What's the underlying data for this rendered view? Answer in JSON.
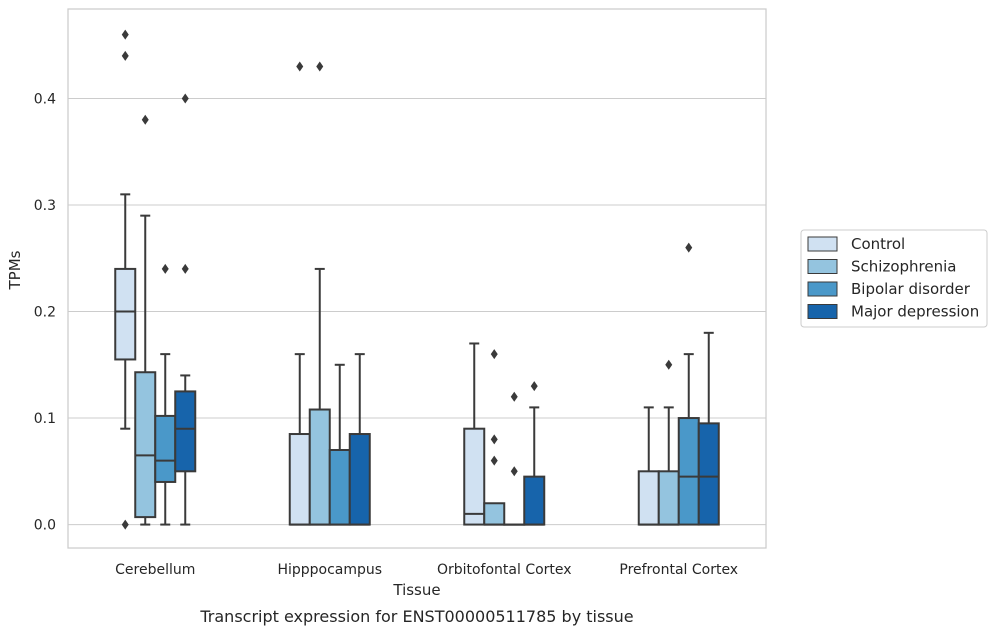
{
  "chart_data": {
    "type": "box",
    "caption": "Transcript expression for ENST00000511785 by tissue",
    "xlabel": "Tissue",
    "ylabel": "TPMs",
    "ylim": [
      -0.022,
      0.484
    ],
    "yticks": [
      0.0,
      0.1,
      0.2,
      0.3,
      0.4
    ],
    "ytick_labels": [
      "0.0",
      "0.1",
      "0.2",
      "0.3",
      "0.4"
    ],
    "grid": "horizontal",
    "legend_position": "right",
    "categories": [
      "Cerebellum",
      "Hipppocampus",
      "Orbitofontal Cortex",
      "Prefrontal Cortex"
    ],
    "series": [
      {
        "name": "Control",
        "color": "#d0e1f2",
        "boxes": [
          {
            "whisker_low": 0.09,
            "q1": 0.155,
            "median": 0.2,
            "q3": 0.24,
            "whisker_high": 0.31,
            "outliers": [
              0.46,
              0.44,
              0.0
            ]
          },
          {
            "whisker_low": 0.0,
            "q1": 0.0,
            "median": 0.0,
            "q3": 0.085,
            "whisker_high": 0.16,
            "outliers": [
              0.43
            ]
          },
          {
            "whisker_low": 0.0,
            "q1": 0.0,
            "median": 0.01,
            "q3": 0.09,
            "whisker_high": 0.17,
            "outliers": []
          },
          {
            "whisker_low": 0.0,
            "q1": 0.0,
            "median": 0.0,
            "q3": 0.05,
            "whisker_high": 0.11,
            "outliers": []
          }
        ]
      },
      {
        "name": "Schizophrenia",
        "color": "#94c4df",
        "boxes": [
          {
            "whisker_low": 0.0,
            "q1": 0.007,
            "median": 0.065,
            "q3": 0.143,
            "whisker_high": 0.29,
            "outliers": [
              0.38
            ]
          },
          {
            "whisker_low": 0.0,
            "q1": 0.0,
            "median": 0.0,
            "q3": 0.108,
            "whisker_high": 0.24,
            "outliers": [
              0.43
            ]
          },
          {
            "whisker_low": 0.0,
            "q1": 0.0,
            "median": 0.0,
            "q3": 0.02,
            "whisker_high": 0.02,
            "outliers": [
              0.16,
              0.08,
              0.06
            ]
          },
          {
            "whisker_low": 0.0,
            "q1": 0.0,
            "median": 0.0,
            "q3": 0.05,
            "whisker_high": 0.11,
            "outliers": [
              0.15
            ]
          }
        ]
      },
      {
        "name": "Bipolar disorder",
        "color": "#4a98c9",
        "boxes": [
          {
            "whisker_low": 0.0,
            "q1": 0.04,
            "median": 0.06,
            "q3": 0.102,
            "whisker_high": 0.16,
            "outliers": [
              0.24
            ]
          },
          {
            "whisker_low": 0.0,
            "q1": 0.0,
            "median": 0.0,
            "q3": 0.07,
            "whisker_high": 0.15,
            "outliers": []
          },
          {
            "whisker_low": 0.0,
            "q1": 0.0,
            "median": 0.0,
            "q3": 0.0,
            "whisker_high": 0.0,
            "outliers": [
              0.12,
              0.05
            ]
          },
          {
            "whisker_low": 0.0,
            "q1": 0.0,
            "median": 0.045,
            "q3": 0.1,
            "whisker_high": 0.16,
            "outliers": [
              0.26
            ]
          }
        ]
      },
      {
        "name": "Major depression",
        "color": "#1764ab",
        "boxes": [
          {
            "whisker_low": 0.0,
            "q1": 0.05,
            "median": 0.09,
            "q3": 0.125,
            "whisker_high": 0.14,
            "outliers": [
              0.4,
              0.24
            ]
          },
          {
            "whisker_low": 0.0,
            "q1": 0.0,
            "median": 0.0,
            "q3": 0.085,
            "whisker_high": 0.16,
            "outliers": []
          },
          {
            "whisker_low": 0.0,
            "q1": 0.0,
            "median": 0.0,
            "q3": 0.045,
            "whisker_high": 0.11,
            "outliers": [
              0.13
            ]
          },
          {
            "whisker_low": 0.0,
            "q1": 0.0,
            "median": 0.045,
            "q3": 0.095,
            "whisker_high": 0.18,
            "outliers": []
          }
        ]
      }
    ]
  }
}
